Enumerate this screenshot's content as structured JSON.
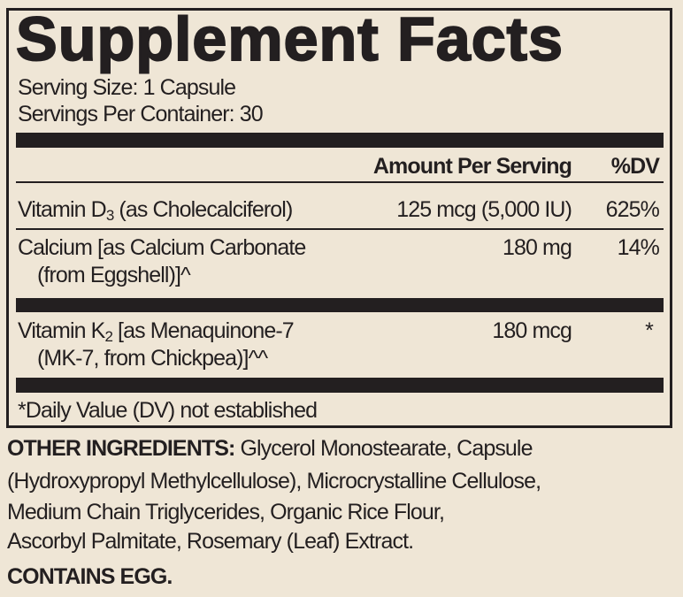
{
  "title": "Supplement Facts",
  "serving_size": "Serving Size: 1 Capsule",
  "servings_per_container": "Servings Per Container: 30",
  "headers": {
    "amount": "Amount Per Serving",
    "dv": "%DV"
  },
  "rows": [
    {
      "name_pre": "Vitamin D",
      "name_sub": "3",
      "name_post": " (as Cholecalciferol)",
      "name_line2": "",
      "amount": "125 mcg (5,000 IU)",
      "dv": "625%"
    },
    {
      "name_pre": "Calcium [as Calcium Carbonate",
      "name_sub": "",
      "name_post": "",
      "name_line2": "(from Eggshell)]^",
      "amount": "180 mg",
      "dv": "14%"
    },
    {
      "name_pre": "Vitamin K",
      "name_sub": "2",
      "name_post": " [as Menaquinone-7",
      "name_line2": "(MK-7, from Chickpea)]^^",
      "amount": "180 mcg",
      "dv": "*"
    }
  ],
  "footnote": "*Daily Value (DV) not established",
  "other_ingredients": {
    "label": "OTHER INGREDIENTS:",
    "lines": [
      " Glycerol Monostearate, Capsule",
      "(Hydroxypropyl Methylcellulose), Microcrystalline Cellulose,",
      "Medium Chain Triglycerides, Organic Rice Flour,",
      "Ascorbyl Palmitate, Rosemary (Leaf) Extract."
    ]
  },
  "contains": "CONTAINS EGG."
}
